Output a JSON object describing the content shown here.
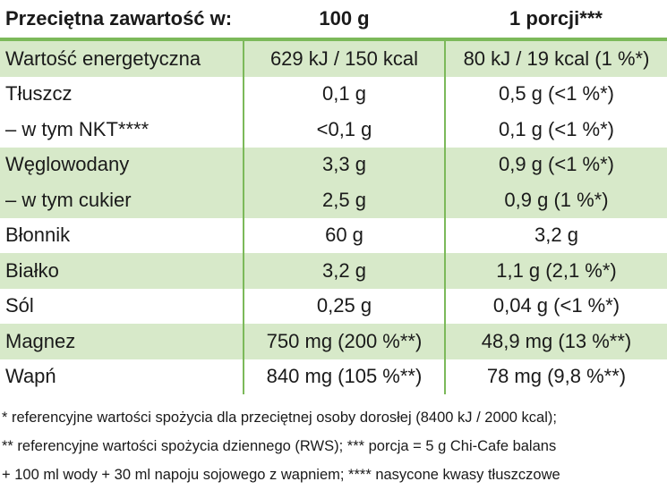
{
  "table": {
    "header": [
      "Przeciętna zawartość w:",
      "100 g",
      "1 porcji***"
    ],
    "rows": [
      [
        "Wartość energetyczna",
        "629 kJ / 150 kcal",
        "80 kJ / 19 kcal (1 %*)"
      ],
      [
        "Tłuszcz",
        "0,1 g",
        "0,5 g (<1 %*)"
      ],
      [
        "– w tym NKT****",
        "<0,1 g",
        "0,1 g (<1 %*)"
      ],
      [
        "Węglowodany",
        "3,3 g",
        "0,9 g (<1 %*)"
      ],
      [
        "– w tym cukier",
        "2,5 g",
        "0,9 g (1 %*)"
      ],
      [
        "Błonnik",
        "60 g",
        "3,2 g"
      ],
      [
        "Białko",
        "3,2 g",
        "1,1 g (2,1 %*)"
      ],
      [
        "Sól",
        "0,25 g",
        "0,04 g (<1 %*)"
      ],
      [
        "Magnez",
        "750 mg (200 %**)",
        "48,9 mg (13 %**)"
      ],
      [
        "Wapń",
        "840 mg (105 %**)",
        "78 mg (9,8 %**)"
      ]
    ]
  },
  "footnotes": [
    "* referencyjne wartości spożycia dla przeciętnej osoby dorosłej (8400 kJ / 2000 kcal);",
    "** referencyjne wartości spożycia dziennego (RWS); *** porcja = 5 g Chi-Cafe balans",
    "+ 100 ml wody + 30 ml napoju sojowego z wapniem; **** nasycone kwasy tłuszczowe"
  ]
}
